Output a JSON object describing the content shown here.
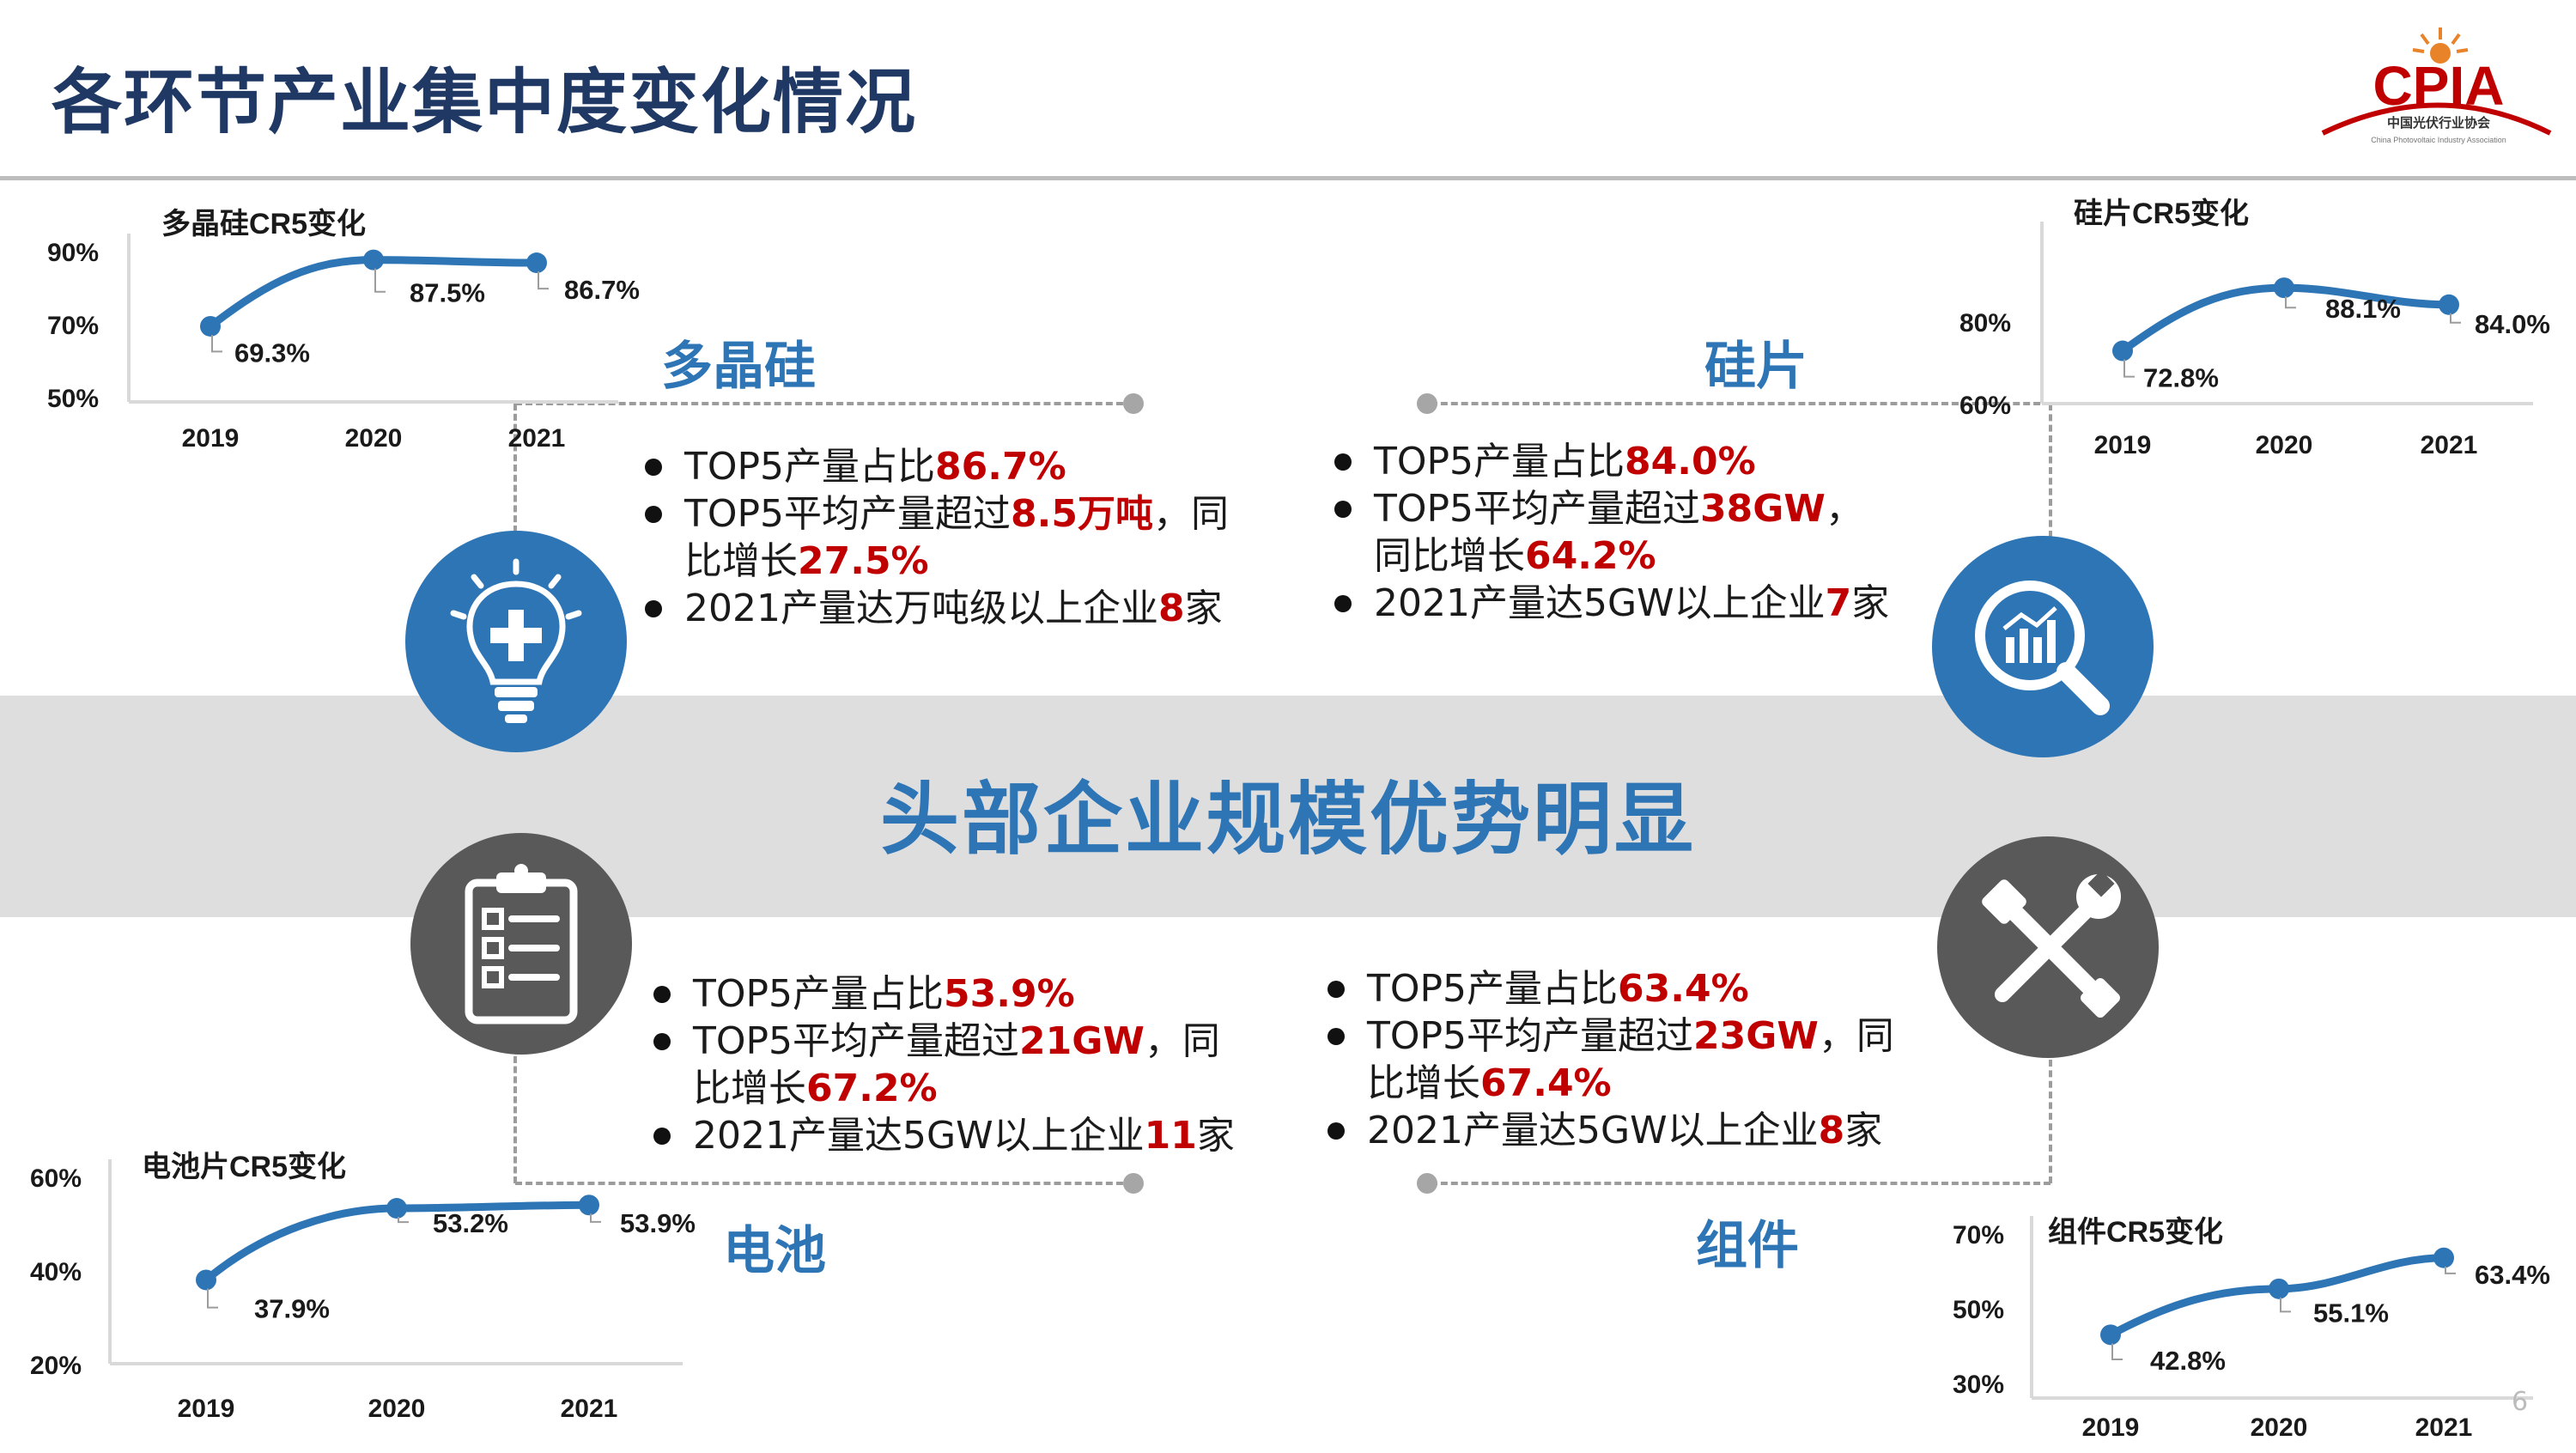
{
  "title": "各环节产业集中度变化情况",
  "logo": {
    "text": "CPIA",
    "subtitle": "中国光伏行业协会",
    "tagline": "China Photovoltaic Industry Association"
  },
  "center_band": "头部企业规模优势明显",
  "page_number": "6",
  "colors": {
    "title": "#1f3864",
    "accent": "#2e75b6",
    "highlight": "#c00000",
    "icon_blue": "#2e75b6",
    "icon_gray": "#595959"
  },
  "sections": [
    {
      "id": "polysilicon",
      "label": "多晶硅",
      "icon": "lightbulb-icon",
      "bullets": [
        [
          {
            "t": "TOP5产量占比"
          },
          {
            "t": "86.7%",
            "hl": true
          }
        ],
        [
          {
            "t": "TOP5平均产量超过"
          },
          {
            "t": "8.5万吨",
            "hl": true
          },
          {
            "t": "，同"
          }
        ],
        [
          {
            "t": "比增长"
          },
          {
            "t": "27.5%",
            "hl": true
          }
        ],
        [
          {
            "t": "2021产量达万吨级以上企业"
          },
          {
            "t": "8",
            "hl": true
          },
          {
            "t": "家"
          }
        ]
      ]
    },
    {
      "id": "wafer",
      "label": "硅片",
      "icon": "magnifier-chart-icon",
      "bullets": [
        [
          {
            "t": "TOP5产量占比"
          },
          {
            "t": "84.0%",
            "hl": true
          }
        ],
        [
          {
            "t": "TOP5平均产量超过"
          },
          {
            "t": "38GW",
            "hl": true
          },
          {
            "t": "，"
          }
        ],
        [
          {
            "t": "同比增长"
          },
          {
            "t": "64.2%",
            "hl": true
          }
        ],
        [
          {
            "t": "2021产量达5GW以上企业"
          },
          {
            "t": "7",
            "hl": true
          },
          {
            "t": "家"
          }
        ]
      ]
    },
    {
      "id": "cell",
      "label": "电池",
      "icon": "clipboard-checklist-icon",
      "bullets": [
        [
          {
            "t": "TOP5产量占比"
          },
          {
            "t": "53.9%",
            "hl": true
          }
        ],
        [
          {
            "t": "TOP5平均产量超过"
          },
          {
            "t": "21GW",
            "hl": true
          },
          {
            "t": "，同"
          }
        ],
        [
          {
            "t": "比增长"
          },
          {
            "t": "67.2%",
            "hl": true
          }
        ],
        [
          {
            "t": "2021产量达5GW以上企业"
          },
          {
            "t": "11",
            "hl": true
          },
          {
            "t": "家"
          }
        ]
      ]
    },
    {
      "id": "module",
      "label": "组件",
      "icon": "wrench-screwdriver-icon",
      "bullets": [
        [
          {
            "t": "TOP5产量占比"
          },
          {
            "t": "63.4%",
            "hl": true
          }
        ],
        [
          {
            "t": "TOP5平均产量超过"
          },
          {
            "t": "23GW",
            "hl": true
          },
          {
            "t": "，同"
          }
        ],
        [
          {
            "t": "比增长"
          },
          {
            "t": "67.4%",
            "hl": true
          }
        ],
        [
          {
            "t": "2021产量达5GW以上企业"
          },
          {
            "t": "8",
            "hl": true
          },
          {
            "t": "家"
          }
        ]
      ]
    }
  ],
  "chart_data": [
    {
      "id": "polysilicon-cr5",
      "type": "line",
      "title": "多晶硅CR5变化",
      "x": [
        "2019",
        "2020",
        "2021"
      ],
      "y": [
        69.3,
        87.5,
        86.7
      ],
      "data_labels": [
        "69.3%",
        "87.5%",
        "86.7%"
      ],
      "yticks": [
        50,
        70,
        90
      ],
      "ytick_labels": [
        "50%",
        "70%",
        "90%"
      ],
      "ylim": [
        50,
        90
      ],
      "line_color": "#2e75b6",
      "grid": false
    },
    {
      "id": "wafer-cr5",
      "type": "line",
      "title": "硅片CR5变化",
      "x": [
        "2019",
        "2020",
        "2021"
      ],
      "y": [
        72.8,
        88.1,
        84.0
      ],
      "data_labels": [
        "72.8%",
        "88.1%",
        "84.0%"
      ],
      "yticks": [
        60,
        80
      ],
      "ytick_labels": [
        "60%",
        "80%"
      ],
      "ylim": [
        60,
        100
      ],
      "line_color": "#2e75b6",
      "grid": false
    },
    {
      "id": "cell-cr5",
      "type": "line",
      "title": "电池片CR5变化",
      "x": [
        "2019",
        "2020",
        "2021"
      ],
      "y": [
        37.9,
        53.2,
        53.9
      ],
      "data_labels": [
        "37.9%",
        "53.2%",
        "53.9%"
      ],
      "yticks": [
        20,
        40,
        60
      ],
      "ytick_labels": [
        "20%",
        "40%",
        "60%"
      ],
      "ylim": [
        20,
        60
      ],
      "line_color": "#2e75b6",
      "grid": false
    },
    {
      "id": "module-cr5",
      "type": "line",
      "title": "组件CR5变化",
      "x": [
        "2019",
        "2020",
        "2021"
      ],
      "y": [
        42.8,
        55.1,
        63.4
      ],
      "data_labels": [
        "42.8%",
        "55.1%",
        "63.4%"
      ],
      "yticks": [
        30,
        50,
        70
      ],
      "ytick_labels": [
        "30%",
        "50%",
        "70%"
      ],
      "ylim": [
        30,
        70
      ],
      "line_color": "#2e75b6",
      "grid": false
    }
  ]
}
